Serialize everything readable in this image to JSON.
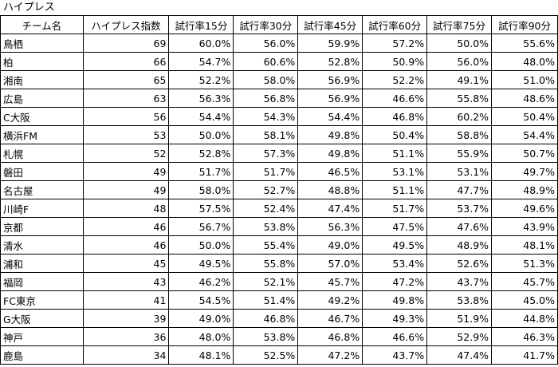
{
  "title": "ハイプレス",
  "headers": [
    "チーム名",
    "ハイプレス指数",
    "試行率15分",
    "試行率30分",
    "試行率45分",
    "試行率60分",
    "試行率75分",
    "試行率90分"
  ],
  "rows": [
    {
      "team": "鳥栖",
      "index": "69",
      "r15": "60.0%",
      "r30": "56.0%",
      "r45": "59.9%",
      "r60": "57.2%",
      "r75": "50.0%",
      "r90": "55.6%"
    },
    {
      "team": "柏",
      "index": "66",
      "r15": "54.7%",
      "r30": "60.6%",
      "r45": "52.8%",
      "r60": "50.9%",
      "r75": "56.0%",
      "r90": "48.0%"
    },
    {
      "team": "湘南",
      "index": "65",
      "r15": "52.2%",
      "r30": "58.0%",
      "r45": "56.9%",
      "r60": "52.2%",
      "r75": "49.1%",
      "r90": "51.0%"
    },
    {
      "team": "広島",
      "index": "63",
      "r15": "56.3%",
      "r30": "56.8%",
      "r45": "56.9%",
      "r60": "46.6%",
      "r75": "55.8%",
      "r90": "48.6%"
    },
    {
      "team": "C大阪",
      "index": "56",
      "r15": "54.4%",
      "r30": "54.3%",
      "r45": "54.4%",
      "r60": "46.8%",
      "r75": "60.2%",
      "r90": "50.4%"
    },
    {
      "team": "横浜FM",
      "index": "53",
      "r15": "50.0%",
      "r30": "58.1%",
      "r45": "49.8%",
      "r60": "50.4%",
      "r75": "58.8%",
      "r90": "54.4%"
    },
    {
      "team": "札幌",
      "index": "52",
      "r15": "52.8%",
      "r30": "57.3%",
      "r45": "49.8%",
      "r60": "51.1%",
      "r75": "55.9%",
      "r90": "50.7%"
    },
    {
      "team": "磐田",
      "index": "49",
      "r15": "51.7%",
      "r30": "51.7%",
      "r45": "46.5%",
      "r60": "53.1%",
      "r75": "53.1%",
      "r90": "49.7%"
    },
    {
      "team": "名古屋",
      "index": "49",
      "r15": "58.0%",
      "r30": "52.7%",
      "r45": "48.8%",
      "r60": "51.1%",
      "r75": "47.7%",
      "r90": "48.9%"
    },
    {
      "team": "川崎F",
      "index": "48",
      "r15": "57.5%",
      "r30": "52.4%",
      "r45": "47.4%",
      "r60": "51.7%",
      "r75": "53.7%",
      "r90": "49.6%"
    },
    {
      "team": "京都",
      "index": "46",
      "r15": "56.7%",
      "r30": "53.8%",
      "r45": "56.3%",
      "r60": "47.5%",
      "r75": "47.6%",
      "r90": "43.9%"
    },
    {
      "team": "清水",
      "index": "46",
      "r15": "50.0%",
      "r30": "55.4%",
      "r45": "49.0%",
      "r60": "49.5%",
      "r75": "48.9%",
      "r90": "48.1%"
    },
    {
      "team": "浦和",
      "index": "45",
      "r15": "49.5%",
      "r30": "55.8%",
      "r45": "57.0%",
      "r60": "53.4%",
      "r75": "52.6%",
      "r90": "51.3%"
    },
    {
      "team": "福岡",
      "index": "43",
      "r15": "46.2%",
      "r30": "52.1%",
      "r45": "45.7%",
      "r60": "47.2%",
      "r75": "43.7%",
      "r90": "45.7%"
    },
    {
      "team": "FC東京",
      "index": "41",
      "r15": "54.5%",
      "r30": "51.4%",
      "r45": "49.2%",
      "r60": "49.8%",
      "r75": "53.8%",
      "r90": "45.0%"
    },
    {
      "team": "G大阪",
      "index": "39",
      "r15": "49.0%",
      "r30": "46.8%",
      "r45": "46.7%",
      "r60": "49.3%",
      "r75": "51.9%",
      "r90": "44.8%"
    },
    {
      "team": "神戸",
      "index": "36",
      "r15": "48.0%",
      "r30": "53.8%",
      "r45": "46.8%",
      "r60": "46.6%",
      "r75": "52.9%",
      "r90": "46.3%"
    },
    {
      "team": "鹿島",
      "index": "34",
      "r15": "48.1%",
      "r30": "52.5%",
      "r45": "47.2%",
      "r60": "43.7%",
      "r75": "47.4%",
      "r90": "41.7%"
    }
  ]
}
